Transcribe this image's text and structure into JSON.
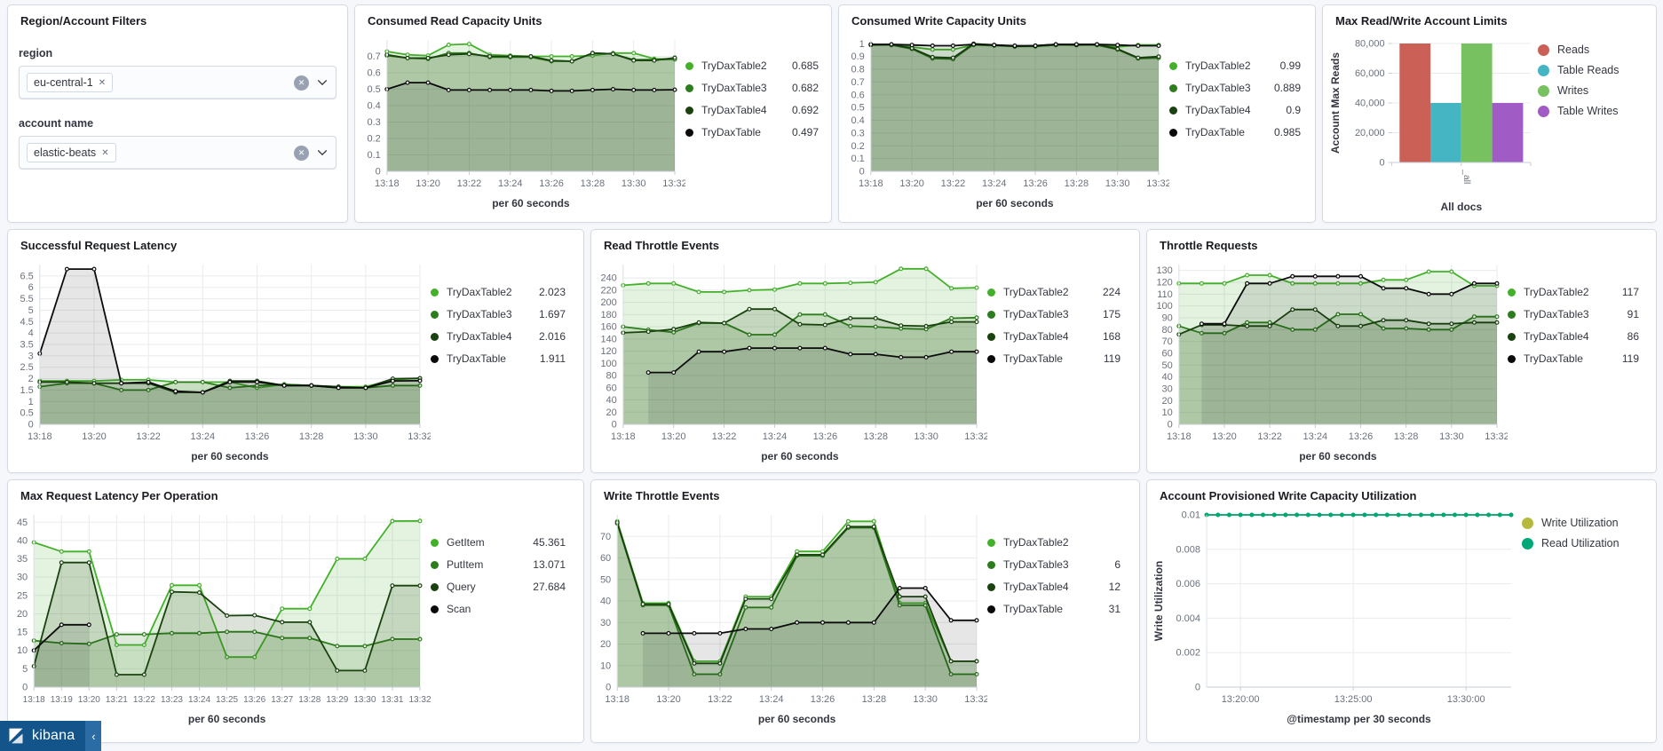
{
  "filters": {
    "title": "Region/Account Filters",
    "region_label": "region",
    "region_value": "eu-central-1",
    "account_label": "account name",
    "account_value": "elastic-beats",
    "remove_glyph": "✕"
  },
  "nav": {
    "brand": "kibana",
    "collapse_glyph": "‹"
  },
  "palette": {
    "green_bright": "#43b02a",
    "green_mid": "#2d7c1e",
    "green_dark": "#1a420f",
    "black": "#0b0b0b",
    "bar_red": "#cb6156",
    "bar_teal": "#45b5c4",
    "bar_green": "#77c160",
    "bar_purple": "#a05cc4",
    "util_olive": "#b5ba3f",
    "util_teal": "#00a878"
  },
  "chart_data": {
    "consumed_read": {
      "type": "area",
      "title": "Consumed Read Capacity Units",
      "x_label": "per 60 seconds",
      "categories": [
        "13:18",
        "13:19",
        "13:20",
        "13:21",
        "13:22",
        "13:23",
        "13:24",
        "13:25",
        "13:26",
        "13:27",
        "13:28",
        "13:29",
        "13:30",
        "13:31",
        "13:32"
      ],
      "x_ticks": [
        "13:18",
        "13:20",
        "13:22",
        "13:24",
        "13:26",
        "13:28",
        "13:30",
        "13:32"
      ],
      "y_ticks": [
        0,
        0.1,
        0.2,
        0.3,
        0.4,
        0.5,
        0.6,
        0.7
      ],
      "ymax": 0.8,
      "series": [
        {
          "name": "TryDaxTable2",
          "value": "0.685",
          "color": "#43b02a",
          "values": [
            0.73,
            0.71,
            0.705,
            0.77,
            0.775,
            0.71,
            0.705,
            0.7,
            0.7,
            0.7,
            0.705,
            0.72,
            0.72,
            0.685,
            0.685
          ]
        },
        {
          "name": "TryDaxTable3",
          "value": "0.682",
          "color": "#2d7c1e",
          "values": [
            0.705,
            0.69,
            0.685,
            0.72,
            0.72,
            0.695,
            0.695,
            0.695,
            0.67,
            0.67,
            0.72,
            0.715,
            0.68,
            0.68,
            0.682
          ]
        },
        {
          "name": "TryDaxTable4",
          "value": "0.692",
          "color": "#1a420f",
          "values": [
            0.71,
            0.69,
            0.69,
            0.71,
            0.715,
            0.7,
            0.7,
            0.7,
            0.675,
            0.67,
            0.72,
            0.715,
            0.675,
            0.675,
            0.692
          ]
        },
        {
          "name": "TryDaxTable",
          "value": "0.497",
          "color": "#0b0b0b",
          "values": [
            0.5,
            0.54,
            0.54,
            0.495,
            0.495,
            0.495,
            0.495,
            0.495,
            0.49,
            0.49,
            0.495,
            0.5,
            0.495,
            0.495,
            0.497
          ]
        }
      ]
    },
    "consumed_write": {
      "type": "area",
      "title": "Consumed Write Capacity Units",
      "x_label": "per 60 seconds",
      "categories": [
        "13:18",
        "13:19",
        "13:20",
        "13:21",
        "13:22",
        "13:23",
        "13:24",
        "13:25",
        "13:26",
        "13:27",
        "13:28",
        "13:29",
        "13:30",
        "13:31",
        "13:32"
      ],
      "x_ticks": [
        "13:18",
        "13:20",
        "13:22",
        "13:24",
        "13:26",
        "13:28",
        "13:30",
        "13:32"
      ],
      "y_ticks": [
        0,
        0.1,
        0.2,
        0.3,
        0.4,
        0.5,
        0.6,
        0.7,
        0.8,
        0.9,
        1
      ],
      "ymax": 1.03,
      "series": [
        {
          "name": "TryDaxTable2",
          "value": "0.99",
          "color": "#43b02a",
          "values": [
            0.99,
            0.99,
            0.975,
            0.955,
            0.955,
            0.99,
            0.985,
            0.98,
            0.98,
            0.99,
            0.99,
            0.99,
            0.975,
            0.99,
            0.99
          ]
        },
        {
          "name": "TryDaxTable3",
          "value": "0.889",
          "color": "#2d7c1e",
          "values": [
            0.995,
            0.99,
            0.96,
            0.885,
            0.88,
            0.995,
            0.99,
            0.98,
            0.98,
            0.99,
            0.995,
            0.99,
            0.955,
            0.885,
            0.889
          ]
        },
        {
          "name": "TryDaxTable4",
          "value": "0.9",
          "color": "#1a420f",
          "values": [
            0.99,
            0.995,
            0.965,
            0.895,
            0.89,
            1.0,
            0.99,
            0.98,
            0.985,
            0.995,
            0.99,
            0.995,
            0.96,
            0.89,
            0.9
          ]
        },
        {
          "name": "TryDaxTable",
          "value": "0.985",
          "color": "#0b0b0b",
          "values": [
            0.995,
            0.995,
            0.99,
            0.985,
            0.985,
            0.995,
            0.99,
            0.985,
            0.985,
            0.995,
            0.995,
            0.995,
            0.99,
            0.985,
            0.985
          ]
        }
      ]
    },
    "max_limits": {
      "type": "bar",
      "title": "Max Read/Write Account Limits",
      "y_title": "Account Max Reads",
      "x_label": "All docs",
      "x_tick": "_all",
      "y_ticks": [
        0,
        20000,
        40000,
        60000,
        80000
      ],
      "y_tick_labels": [
        "0",
        "20,000",
        "40,000",
        "60,000",
        "80,000"
      ],
      "ymax": 80000,
      "series": [
        {
          "name": "Reads",
          "color": "#cb6156",
          "bar_value": 80000
        },
        {
          "name": "Table Reads",
          "color": "#45b5c4",
          "bar_value": 40000
        },
        {
          "name": "Writes",
          "color": "#77c160",
          "bar_value": 80000
        },
        {
          "name": "Table Writes",
          "color": "#a05cc4",
          "bar_value": 40000
        }
      ]
    },
    "successful_latency": {
      "type": "area",
      "title": "Successful Request Latency",
      "x_label": "per 60 seconds",
      "categories": [
        "13:18",
        "13:19",
        "13:20",
        "13:21",
        "13:22",
        "13:23",
        "13:24",
        "13:25",
        "13:26",
        "13:27",
        "13:28",
        "13:29",
        "13:30",
        "13:31",
        "13:32"
      ],
      "x_ticks": [
        "13:18",
        "13:20",
        "13:22",
        "13:24",
        "13:26",
        "13:28",
        "13:30",
        "13:32"
      ],
      "y_ticks": [
        0,
        0.5,
        1,
        1.5,
        2,
        2.5,
        3,
        3.5,
        4,
        4.5,
        5,
        5.5,
        6,
        6.5
      ],
      "ymax": 7,
      "series": [
        {
          "name": "TryDaxTable2",
          "value": "2.023",
          "color": "#43b02a",
          "values": [
            1.9,
            1.9,
            1.9,
            1.95,
            1.95,
            1.85,
            1.85,
            1.85,
            1.6,
            1.75,
            1.7,
            1.65,
            1.65,
            1.95,
            2.023
          ]
        },
        {
          "name": "TryDaxTable3",
          "value": "1.697",
          "color": "#2d7c1e",
          "values": [
            1.65,
            1.8,
            1.8,
            1.5,
            1.5,
            1.85,
            1.85,
            1.6,
            1.7,
            1.75,
            1.7,
            1.6,
            1.6,
            1.7,
            1.697
          ]
        },
        {
          "name": "TryDaxTable4",
          "value": "2.016",
          "color": "#1a420f",
          "values": [
            1.85,
            1.85,
            1.8,
            1.8,
            1.8,
            1.4,
            1.4,
            1.9,
            1.9,
            1.7,
            1.7,
            1.65,
            1.6,
            2.0,
            2.016
          ]
        },
        {
          "name": "TryDaxTable",
          "value": "1.911",
          "color": "#0b0b0b",
          "values": [
            3.1,
            6.8,
            6.8,
            1.8,
            1.85,
            1.45,
            1.4,
            1.85,
            1.85,
            1.7,
            1.7,
            1.6,
            1.6,
            1.9,
            1.911
          ]
        }
      ]
    },
    "read_throttle": {
      "type": "area",
      "title": "Read Throttle Events",
      "x_label": "per 60 seconds",
      "categories": [
        "13:18",
        "13:19",
        "13:20",
        "13:21",
        "13:22",
        "13:23",
        "13:24",
        "13:25",
        "13:26",
        "13:27",
        "13:28",
        "13:29",
        "13:30",
        "13:31",
        "13:32"
      ],
      "x_ticks": [
        "13:18",
        "13:20",
        "13:22",
        "13:24",
        "13:26",
        "13:28",
        "13:30",
        "13:32"
      ],
      "y_ticks": [
        0,
        20,
        40,
        60,
        80,
        100,
        120,
        140,
        160,
        180,
        200,
        220,
        240
      ],
      "ymax": 262,
      "series": [
        {
          "name": "TryDaxTable2",
          "value": "224",
          "color": "#43b02a",
          "values": [
            228,
            231,
            231,
            217,
            217,
            220,
            221,
            231,
            231,
            232,
            233,
            255,
            255,
            223,
            224
          ]
        },
        {
          "name": "TryDaxTable3",
          "value": "175",
          "color": "#2d7c1e",
          "values": [
            160,
            155,
            151,
            166,
            166,
            147,
            147,
            180,
            180,
            161,
            160,
            157,
            156,
            174,
            175
          ]
        },
        {
          "name": "TryDaxTable4",
          "value": "168",
          "color": "#1a420f",
          "values": [
            150,
            152,
            156,
            167,
            166,
            189,
            189,
            164,
            163,
            174,
            174,
            162,
            161,
            168,
            168
          ]
        },
        {
          "name": "TryDaxTable",
          "value": "119",
          "color": "#0b0b0b",
          "values": [
            null,
            85,
            85,
            119,
            119,
            125,
            125,
            125,
            125,
            115,
            115,
            110,
            110,
            119,
            119
          ]
        }
      ]
    },
    "throttle_requests": {
      "type": "area",
      "title": "Throttle Requests",
      "x_label": "per 60 seconds",
      "categories": [
        "13:18",
        "13:19",
        "13:20",
        "13:21",
        "13:22",
        "13:23",
        "13:24",
        "13:25",
        "13:26",
        "13:27",
        "13:28",
        "13:29",
        "13:30",
        "13:31",
        "13:32"
      ],
      "x_ticks": [
        "13:18",
        "13:20",
        "13:22",
        "13:24",
        "13:26",
        "13:28",
        "13:30",
        "13:32"
      ],
      "y_ticks": [
        0,
        10,
        20,
        30,
        40,
        50,
        60,
        70,
        80,
        90,
        100,
        110,
        120,
        130
      ],
      "ymax": 135,
      "series": [
        {
          "name": "TryDaxTable2",
          "value": "117",
          "color": "#43b02a",
          "values": [
            119,
            119,
            119,
            126,
            126,
            119,
            119,
            119,
            119,
            122,
            122,
            129,
            129,
            117,
            117
          ]
        },
        {
          "name": "TryDaxTable3",
          "value": "91",
          "color": "#2d7c1e",
          "values": [
            83,
            77,
            77,
            86,
            86,
            80,
            80,
            93,
            93,
            81,
            81,
            80,
            80,
            91,
            91
          ]
        },
        {
          "name": "TryDaxTable4",
          "value": "86",
          "color": "#1a420f",
          "values": [
            76,
            84,
            84,
            83,
            83,
            97,
            97,
            83,
            83,
            88,
            88,
            85,
            85,
            86,
            86
          ]
        },
        {
          "name": "TryDaxTable",
          "value": "119",
          "color": "#0b0b0b",
          "values": [
            null,
            85,
            85,
            119,
            119,
            125,
            125,
            125,
            125,
            115,
            115,
            110,
            110,
            119,
            119
          ]
        }
      ]
    },
    "max_latency_op": {
      "type": "area",
      "title": "Max Request Latency Per Operation",
      "x_label": "per 60 seconds",
      "categories": [
        "13:18",
        "13:19",
        "13:20",
        "13:21",
        "13:22",
        "13:23",
        "13:24",
        "13:25",
        "13:26",
        "13:27",
        "13:28",
        "13:29",
        "13:30",
        "13:31",
        "13:32"
      ],
      "x_ticks": [
        "13:18",
        "13:19",
        "13:20",
        "13:21",
        "13:22",
        "13:23",
        "13:24",
        "13:25",
        "13:26",
        "13:27",
        "13:28",
        "13:29",
        "13:30",
        "13:31",
        "13:32"
      ],
      "y_ticks": [
        0,
        5,
        10,
        15,
        20,
        25,
        30,
        35,
        40,
        45
      ],
      "ymax": 47,
      "series": [
        {
          "name": "GetItem",
          "value": "45.361",
          "color": "#43b02a",
          "values": [
            39.5,
            37,
            37,
            11.5,
            11.5,
            27.8,
            27.8,
            8.2,
            8.2,
            21.4,
            21.4,
            35,
            35,
            45.3,
            45.361
          ]
        },
        {
          "name": "PutItem",
          "value": "13.071",
          "color": "#2d7c1e",
          "values": [
            12.7,
            12,
            11.8,
            14.4,
            14.4,
            14.7,
            14.7,
            15.1,
            15.1,
            13.4,
            13.4,
            11.2,
            11.2,
            13.1,
            13.071
          ]
        },
        {
          "name": "Query",
          "value": "27.684",
          "color": "#1a420f",
          "values": [
            5.7,
            34,
            34,
            3.4,
            3.4,
            26,
            25.8,
            19.5,
            19.6,
            17.7,
            17.7,
            4.5,
            4.5,
            27.7,
            27.684
          ]
        },
        {
          "name": "Scan",
          "value": "",
          "color": "#0b0b0b",
          "values": [
            10,
            17,
            17,
            null,
            null,
            null,
            null,
            null,
            null,
            null,
            null,
            null,
            null,
            null,
            null
          ]
        }
      ]
    },
    "write_throttle": {
      "type": "area",
      "title": "Write Throttle Events",
      "x_label": "per 60 seconds",
      "categories": [
        "13:18",
        "13:19",
        "13:20",
        "13:21",
        "13:22",
        "13:23",
        "13:24",
        "13:25",
        "13:26",
        "13:27",
        "13:28",
        "13:29",
        "13:30",
        "13:31",
        "13:32"
      ],
      "x_ticks": [
        "13:18",
        "13:20",
        "13:22",
        "13:24",
        "13:26",
        "13:28",
        "13:30",
        "13:32"
      ],
      "y_ticks": [
        0,
        10,
        20,
        30,
        40,
        50,
        60,
        70
      ],
      "ymax": 80,
      "series": [
        {
          "name": "TryDaxTable2",
          "value": "",
          "color": "#43b02a",
          "values": [
            77,
            39,
            39,
            12,
            12,
            42,
            42,
            63,
            63,
            77,
            77,
            39,
            39,
            12,
            12
          ]
        },
        {
          "name": "TryDaxTable3",
          "value": "6",
          "color": "#2d7c1e",
          "values": [
            76,
            38,
            38,
            6,
            6,
            37,
            37,
            61,
            61,
            74,
            74,
            38,
            38,
            6,
            6
          ]
        },
        {
          "name": "TryDaxTable4",
          "value": "12",
          "color": "#1a420f",
          "values": [
            76.5,
            38.5,
            38.5,
            11,
            11,
            41,
            41,
            61.5,
            61.5,
            74.5,
            74.5,
            42,
            42,
            12,
            12
          ]
        },
        {
          "name": "TryDaxTable",
          "value": "31",
          "color": "#0b0b0b",
          "values": [
            null,
            25,
            25,
            25,
            25,
            27,
            27,
            30,
            30,
            30,
            30,
            46,
            46,
            31,
            31
          ]
        }
      ]
    },
    "write_utilization": {
      "type": "line",
      "title": "Account Provisioned Write Capacity Utilization",
      "y_title": "Write Utilization",
      "x_label": "@timestamp per 30 seconds",
      "categories": [
        "13:18:30",
        "13:19:00",
        "13:19:30",
        "13:20:00",
        "13:20:30",
        "13:21:00",
        "13:21:30",
        "13:22:00",
        "13:22:30",
        "13:23:00",
        "13:23:30",
        "13:24:00",
        "13:24:30",
        "13:25:00",
        "13:25:30",
        "13:26:00",
        "13:26:30",
        "13:27:00",
        "13:27:30",
        "13:28:00",
        "13:28:30",
        "13:29:00",
        "13:29:30",
        "13:30:00",
        "13:30:30",
        "13:31:00",
        "13:31:30",
        "13:32:00"
      ],
      "x_ticks": [
        "13:20:00",
        "13:25:00",
        "13:30:00"
      ],
      "y_ticks": [
        0,
        0.002,
        0.004,
        0.006,
        0.008,
        0.01
      ],
      "ymax": 0.01,
      "series": [
        {
          "name": "Write Utilization",
          "value": "",
          "color": "#b5ba3f",
          "constant": 0.01,
          "fill": false
        },
        {
          "name": "Read Utilization",
          "value": "",
          "color": "#00a878",
          "constant": 0.01,
          "fill": false
        }
      ]
    }
  }
}
